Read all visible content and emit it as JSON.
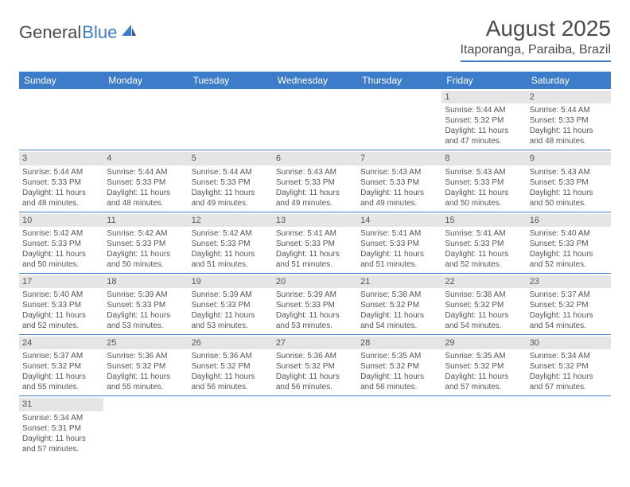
{
  "logo": {
    "text1": "General",
    "text2": "Blue"
  },
  "title": "August 2025",
  "location": "Itaporanga, Paraiba, Brazil",
  "colors": {
    "accent": "#3d7cc9",
    "header_text": "#ffffff",
    "body_text": "#555555",
    "daynum_bg": "#e5e5e5",
    "page_bg": "#ffffff"
  },
  "typography": {
    "title_fontsize": 28,
    "location_fontsize": 16,
    "header_fontsize": 12,
    "cell_fontsize": 10
  },
  "day_names": [
    "Sunday",
    "Monday",
    "Tuesday",
    "Wednesday",
    "Thursday",
    "Friday",
    "Saturday"
  ],
  "weeks": [
    [
      {
        "n": "",
        "empty": true
      },
      {
        "n": "",
        "empty": true
      },
      {
        "n": "",
        "empty": true
      },
      {
        "n": "",
        "empty": true
      },
      {
        "n": "",
        "empty": true
      },
      {
        "n": "1",
        "sunrise": "Sunrise: 5:44 AM",
        "sunset": "Sunset: 5:32 PM",
        "daylight1": "Daylight: 11 hours",
        "daylight2": "and 47 minutes."
      },
      {
        "n": "2",
        "sunrise": "Sunrise: 5:44 AM",
        "sunset": "Sunset: 5:33 PM",
        "daylight1": "Daylight: 11 hours",
        "daylight2": "and 48 minutes."
      }
    ],
    [
      {
        "n": "3",
        "sunrise": "Sunrise: 5:44 AM",
        "sunset": "Sunset: 5:33 PM",
        "daylight1": "Daylight: 11 hours",
        "daylight2": "and 48 minutes."
      },
      {
        "n": "4",
        "sunrise": "Sunrise: 5:44 AM",
        "sunset": "Sunset: 5:33 PM",
        "daylight1": "Daylight: 11 hours",
        "daylight2": "and 48 minutes."
      },
      {
        "n": "5",
        "sunrise": "Sunrise: 5:44 AM",
        "sunset": "Sunset: 5:33 PM",
        "daylight1": "Daylight: 11 hours",
        "daylight2": "and 49 minutes."
      },
      {
        "n": "6",
        "sunrise": "Sunrise: 5:43 AM",
        "sunset": "Sunset: 5:33 PM",
        "daylight1": "Daylight: 11 hours",
        "daylight2": "and 49 minutes."
      },
      {
        "n": "7",
        "sunrise": "Sunrise: 5:43 AM",
        "sunset": "Sunset: 5:33 PM",
        "daylight1": "Daylight: 11 hours",
        "daylight2": "and 49 minutes."
      },
      {
        "n": "8",
        "sunrise": "Sunrise: 5:43 AM",
        "sunset": "Sunset: 5:33 PM",
        "daylight1": "Daylight: 11 hours",
        "daylight2": "and 50 minutes."
      },
      {
        "n": "9",
        "sunrise": "Sunrise: 5:43 AM",
        "sunset": "Sunset: 5:33 PM",
        "daylight1": "Daylight: 11 hours",
        "daylight2": "and 50 minutes."
      }
    ],
    [
      {
        "n": "10",
        "sunrise": "Sunrise: 5:42 AM",
        "sunset": "Sunset: 5:33 PM",
        "daylight1": "Daylight: 11 hours",
        "daylight2": "and 50 minutes."
      },
      {
        "n": "11",
        "sunrise": "Sunrise: 5:42 AM",
        "sunset": "Sunset: 5:33 PM",
        "daylight1": "Daylight: 11 hours",
        "daylight2": "and 50 minutes."
      },
      {
        "n": "12",
        "sunrise": "Sunrise: 5:42 AM",
        "sunset": "Sunset: 5:33 PM",
        "daylight1": "Daylight: 11 hours",
        "daylight2": "and 51 minutes."
      },
      {
        "n": "13",
        "sunrise": "Sunrise: 5:41 AM",
        "sunset": "Sunset: 5:33 PM",
        "daylight1": "Daylight: 11 hours",
        "daylight2": "and 51 minutes."
      },
      {
        "n": "14",
        "sunrise": "Sunrise: 5:41 AM",
        "sunset": "Sunset: 5:33 PM",
        "daylight1": "Daylight: 11 hours",
        "daylight2": "and 51 minutes."
      },
      {
        "n": "15",
        "sunrise": "Sunrise: 5:41 AM",
        "sunset": "Sunset: 5:33 PM",
        "daylight1": "Daylight: 11 hours",
        "daylight2": "and 52 minutes."
      },
      {
        "n": "16",
        "sunrise": "Sunrise: 5:40 AM",
        "sunset": "Sunset: 5:33 PM",
        "daylight1": "Daylight: 11 hours",
        "daylight2": "and 52 minutes."
      }
    ],
    [
      {
        "n": "17",
        "sunrise": "Sunrise: 5:40 AM",
        "sunset": "Sunset: 5:33 PM",
        "daylight1": "Daylight: 11 hours",
        "daylight2": "and 52 minutes."
      },
      {
        "n": "18",
        "sunrise": "Sunrise: 5:39 AM",
        "sunset": "Sunset: 5:33 PM",
        "daylight1": "Daylight: 11 hours",
        "daylight2": "and 53 minutes."
      },
      {
        "n": "19",
        "sunrise": "Sunrise: 5:39 AM",
        "sunset": "Sunset: 5:33 PM",
        "daylight1": "Daylight: 11 hours",
        "daylight2": "and 53 minutes."
      },
      {
        "n": "20",
        "sunrise": "Sunrise: 5:39 AM",
        "sunset": "Sunset: 5:33 PM",
        "daylight1": "Daylight: 11 hours",
        "daylight2": "and 53 minutes."
      },
      {
        "n": "21",
        "sunrise": "Sunrise: 5:38 AM",
        "sunset": "Sunset: 5:32 PM",
        "daylight1": "Daylight: 11 hours",
        "daylight2": "and 54 minutes."
      },
      {
        "n": "22",
        "sunrise": "Sunrise: 5:38 AM",
        "sunset": "Sunset: 5:32 PM",
        "daylight1": "Daylight: 11 hours",
        "daylight2": "and 54 minutes."
      },
      {
        "n": "23",
        "sunrise": "Sunrise: 5:37 AM",
        "sunset": "Sunset: 5:32 PM",
        "daylight1": "Daylight: 11 hours",
        "daylight2": "and 54 minutes."
      }
    ],
    [
      {
        "n": "24",
        "sunrise": "Sunrise: 5:37 AM",
        "sunset": "Sunset: 5:32 PM",
        "daylight1": "Daylight: 11 hours",
        "daylight2": "and 55 minutes."
      },
      {
        "n": "25",
        "sunrise": "Sunrise: 5:36 AM",
        "sunset": "Sunset: 5:32 PM",
        "daylight1": "Daylight: 11 hours",
        "daylight2": "and 55 minutes."
      },
      {
        "n": "26",
        "sunrise": "Sunrise: 5:36 AM",
        "sunset": "Sunset: 5:32 PM",
        "daylight1": "Daylight: 11 hours",
        "daylight2": "and 56 minutes."
      },
      {
        "n": "27",
        "sunrise": "Sunrise: 5:36 AM",
        "sunset": "Sunset: 5:32 PM",
        "daylight1": "Daylight: 11 hours",
        "daylight2": "and 56 minutes."
      },
      {
        "n": "28",
        "sunrise": "Sunrise: 5:35 AM",
        "sunset": "Sunset: 5:32 PM",
        "daylight1": "Daylight: 11 hours",
        "daylight2": "and 56 minutes."
      },
      {
        "n": "29",
        "sunrise": "Sunrise: 5:35 AM",
        "sunset": "Sunset: 5:32 PM",
        "daylight1": "Daylight: 11 hours",
        "daylight2": "and 57 minutes."
      },
      {
        "n": "30",
        "sunrise": "Sunrise: 5:34 AM",
        "sunset": "Sunset: 5:32 PM",
        "daylight1": "Daylight: 11 hours",
        "daylight2": "and 57 minutes."
      }
    ],
    [
      {
        "n": "31",
        "sunrise": "Sunrise: 5:34 AM",
        "sunset": "Sunset: 5:31 PM",
        "daylight1": "Daylight: 11 hours",
        "daylight2": "and 57 minutes."
      },
      {
        "n": "",
        "empty": true
      },
      {
        "n": "",
        "empty": true
      },
      {
        "n": "",
        "empty": true
      },
      {
        "n": "",
        "empty": true
      },
      {
        "n": "",
        "empty": true
      },
      {
        "n": "",
        "empty": true
      }
    ]
  ]
}
